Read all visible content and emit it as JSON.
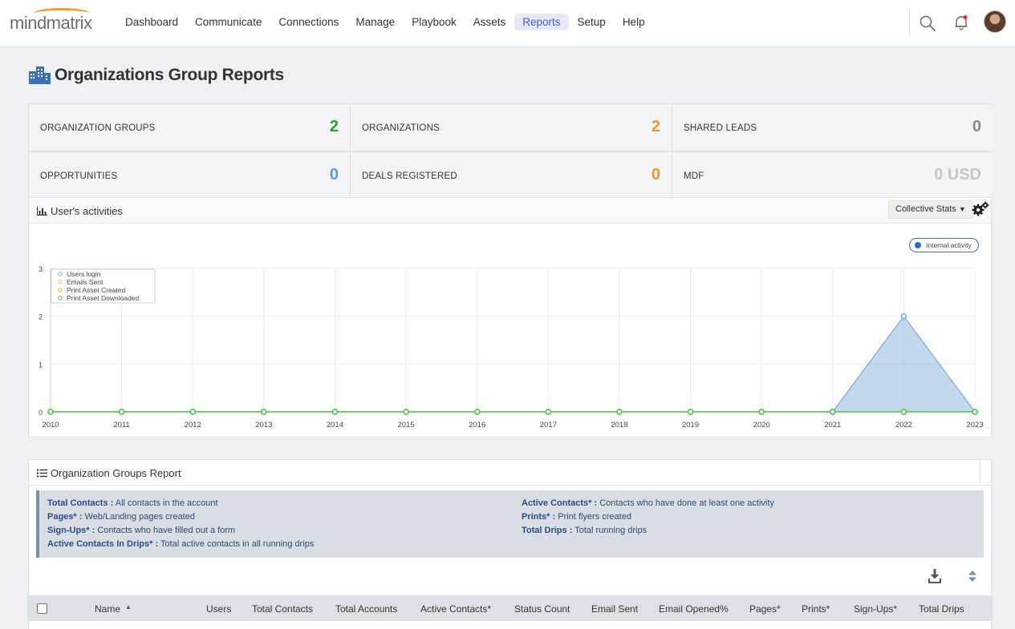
{
  "app": {
    "logo": "mindmatrix",
    "nav": [
      "Dashboard",
      "Communicate",
      "Connections",
      "Manage",
      "Playbook",
      "Assets",
      "Reports",
      "Setup",
      "Help"
    ],
    "active_nav": "Reports",
    "notification_dot_color": "#e03131"
  },
  "page": {
    "title": "Organizations Group Reports"
  },
  "stats": [
    {
      "label": "ORGANIZATION GROUPS",
      "value": "2",
      "color": "#2ca02c"
    },
    {
      "label": "ORGANIZATIONS",
      "value": "2",
      "color": "#f0952c"
    },
    {
      "label": "SHARED LEADS",
      "value": "0",
      "color": "#888888"
    },
    {
      "label": "OPPORTUNITIES",
      "value": "0",
      "color": "#5b9bd5"
    },
    {
      "label": "DEALS REGISTERED",
      "value": "0",
      "color": "#f0952c"
    },
    {
      "label": "MDF",
      "value": "0 USD",
      "color": "#c4c6ca"
    }
  ],
  "activities": {
    "title": "User's activities",
    "dropdown": "Collective Stats",
    "legend_pill": "Internal activity"
  },
  "chart_data": {
    "type": "area",
    "x": [
      "2010",
      "2011",
      "2012",
      "2013",
      "2014",
      "2015",
      "2016",
      "2017",
      "2018",
      "2019",
      "2020",
      "2021",
      "2022",
      "2023"
    ],
    "ylim": [
      0,
      3
    ],
    "yticks": [
      "0",
      "1",
      "2",
      "3"
    ],
    "grid": true,
    "legend_placement": "top-left",
    "series": [
      {
        "name": "Users login",
        "color": "#7aa7d6",
        "values": [
          0,
          0,
          0,
          0,
          0,
          0,
          0,
          0,
          0,
          0,
          0,
          0,
          2,
          0
        ]
      },
      {
        "name": "Emails Sent",
        "color": "#f0b27a",
        "values": [
          0,
          0,
          0,
          0,
          0,
          0,
          0,
          0,
          0,
          0,
          0,
          0,
          0,
          0
        ]
      },
      {
        "name": "Print Asset Created",
        "color": "#d4c21a",
        "values": [
          0,
          0,
          0,
          0,
          0,
          0,
          0,
          0,
          0,
          0,
          0,
          0,
          0,
          0
        ]
      },
      {
        "name": "Print Asset Downloaded",
        "color": "#3cc84a",
        "values": [
          0,
          0,
          0,
          0,
          0,
          0,
          0,
          0,
          0,
          0,
          0,
          0,
          0,
          0
        ]
      }
    ]
  },
  "report": {
    "title": "Organization Groups Report",
    "info_left": [
      {
        "term": "Total Contacts :",
        "desc": "All contacts in the account"
      },
      {
        "term": "Pages* :",
        "desc": "Web/Landing pages created"
      },
      {
        "term": "Sign-Ups* :",
        "desc": "Contacts who have filled out a form"
      },
      {
        "term": "Active Contacts In Drips* :",
        "desc": "Total active contacts in all running drips"
      }
    ],
    "info_right": [
      {
        "term": "Active Contacts* :",
        "desc": "Contacts who have done at least one activity"
      },
      {
        "term": "Prints* :",
        "desc": "Print flyers created"
      },
      {
        "term": "Total Drips :",
        "desc": "Total running drips"
      }
    ],
    "columns": [
      "Name",
      "Users",
      "Total Contacts",
      "Total Accounts",
      "Active Contacts*",
      "Status Count",
      "Email Sent",
      "Email Opened%",
      "Pages*",
      "Prints*",
      "Sign-Ups*",
      "Total Drips"
    ],
    "sorted_column": "Name",
    "sort_direction": "ascending"
  }
}
